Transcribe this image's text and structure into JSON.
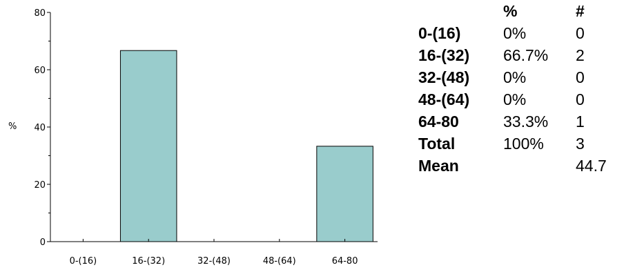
{
  "chart_data": {
    "type": "bar",
    "categories": [
      "0-(16)",
      "16-(32)",
      "32-(48)",
      "48-(64)",
      "64-80"
    ],
    "values": [
      0,
      66.7,
      0,
      0,
      33.3
    ],
    "ylabel": "%",
    "ylim": [
      0,
      80
    ],
    "yticks": [
      "0",
      "20",
      "40",
      "60",
      "80"
    ],
    "grid": false,
    "bar_color": "#99cccc"
  },
  "table": {
    "headers": [
      "",
      "%",
      "#"
    ],
    "rows": [
      {
        "label": "0-(16)",
        "pct": "0%",
        "count": "0"
      },
      {
        "label": "16-(32)",
        "pct": "66.7%",
        "count": "2"
      },
      {
        "label": "32-(48)",
        "pct": "0%",
        "count": "0"
      },
      {
        "label": "48-(64)",
        "pct": "0%",
        "count": "0"
      },
      {
        "label": "64-80",
        "pct": "33.3%",
        "count": "1"
      },
      {
        "label": "Total",
        "pct": "100%",
        "count": "3"
      },
      {
        "label": "Mean",
        "pct": "",
        "count": "44.7"
      }
    ]
  }
}
